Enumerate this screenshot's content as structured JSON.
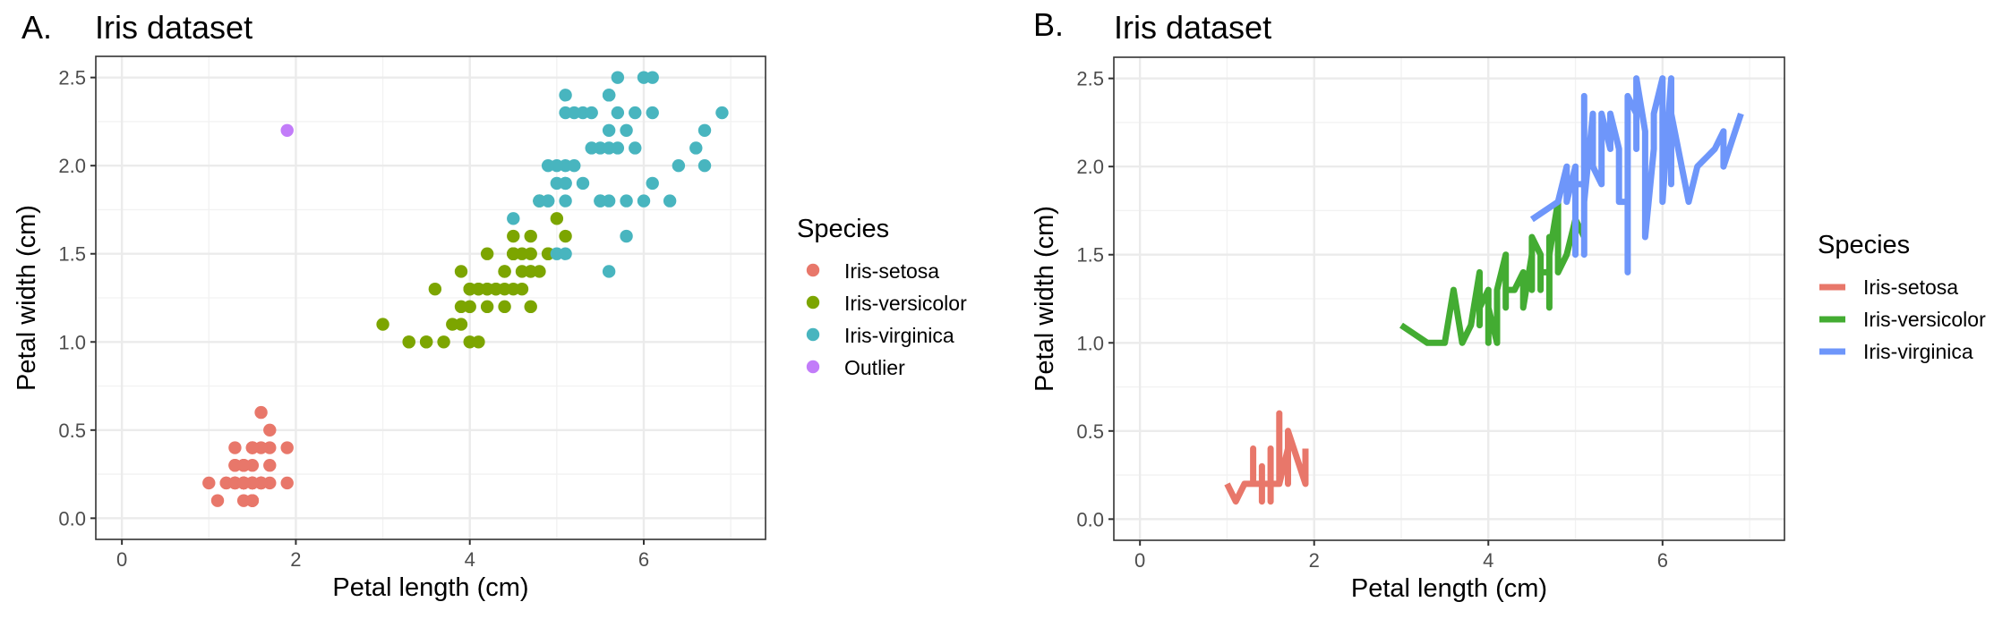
{
  "chart_data": [
    {
      "panel": "A.",
      "type": "scatter",
      "title": "Iris dataset",
      "xlabel": "Petal length (cm)",
      "ylabel": "Petal width (cm)",
      "xlim": [
        -0.3,
        7.4
      ],
      "ylim": [
        -0.12,
        2.62
      ],
      "xticks": [
        0,
        2,
        4,
        6
      ],
      "xtick_labels": [
        "0",
        "2",
        "4",
        "6"
      ],
      "yticks": [
        0.0,
        0.5,
        1.0,
        1.5,
        2.0,
        2.5
      ],
      "ytick_labels": [
        "0.0",
        "0.5",
        "1.0",
        "1.5",
        "2.0",
        "2.5"
      ],
      "grid": true,
      "legend": {
        "title": "Species",
        "placement": "right"
      },
      "series": [
        {
          "name": "Iris-setosa",
          "color": "#E8776A",
          "x": [
            1.4,
            1.4,
            1.3,
            1.5,
            1.4,
            1.7,
            1.4,
            1.5,
            1.4,
            1.5,
            1.5,
            1.6,
            1.4,
            1.1,
            1.2,
            1.5,
            1.3,
            1.4,
            1.7,
            1.5,
            1.7,
            1.5,
            1.0,
            1.7,
            1.9,
            1.6,
            1.6,
            1.5,
            1.4,
            1.6,
            1.6,
            1.5,
            1.5,
            1.4,
            1.5,
            1.2,
            1.3,
            1.5,
            1.3,
            1.5,
            1.3,
            1.3,
            1.3,
            1.6,
            1.9,
            1.4,
            1.6,
            1.4,
            1.5,
            1.4
          ],
          "y": [
            0.2,
            0.2,
            0.2,
            0.2,
            0.2,
            0.4,
            0.3,
            0.2,
            0.2,
            0.1,
            0.2,
            0.2,
            0.1,
            0.1,
            0.2,
            0.4,
            0.4,
            0.3,
            0.3,
            0.3,
            0.2,
            0.4,
            0.2,
            0.5,
            0.2,
            0.2,
            0.4,
            0.2,
            0.2,
            0.2,
            0.2,
            0.4,
            0.1,
            0.2,
            0.1,
            0.2,
            0.2,
            0.1,
            0.2,
            0.2,
            0.3,
            0.3,
            0.2,
            0.6,
            0.4,
            0.3,
            0.2,
            0.2,
            0.2,
            0.2
          ]
        },
        {
          "name": "Iris-versicolor",
          "color": "#7CA500",
          "x": [
            4.7,
            4.5,
            4.9,
            4.0,
            4.6,
            4.5,
            4.7,
            3.3,
            4.6,
            3.9,
            3.5,
            4.2,
            4.0,
            4.7,
            3.6,
            4.4,
            4.5,
            4.1,
            4.5,
            3.9,
            4.8,
            4.0,
            4.9,
            4.7,
            4.3,
            4.4,
            4.8,
            5.0,
            4.5,
            3.5,
            3.8,
            3.7,
            3.9,
            5.1,
            4.5,
            4.5,
            4.7,
            4.4,
            4.1,
            4.0,
            4.4,
            4.6,
            4.0,
            3.3,
            4.2,
            4.2,
            4.2,
            4.3,
            3.0,
            4.1
          ],
          "y": [
            1.4,
            1.5,
            1.5,
            1.3,
            1.5,
            1.3,
            1.6,
            1.0,
            1.3,
            1.4,
            1.0,
            1.5,
            1.0,
            1.4,
            1.3,
            1.4,
            1.5,
            1.0,
            1.5,
            1.1,
            1.8,
            1.3,
            1.5,
            1.2,
            1.3,
            1.4,
            1.4,
            1.7,
            1.5,
            1.0,
            1.1,
            1.0,
            1.2,
            1.6,
            1.5,
            1.6,
            1.5,
            1.3,
            1.3,
            1.3,
            1.2,
            1.4,
            1.2,
            1.0,
            1.3,
            1.2,
            1.3,
            1.3,
            1.1,
            1.3
          ]
        },
        {
          "name": "Iris-virginica",
          "color": "#48B5BF",
          "x": [
            6.0,
            5.1,
            5.9,
            5.6,
            5.8,
            6.6,
            4.5,
            6.3,
            5.8,
            6.1,
            5.1,
            5.3,
            5.5,
            5.0,
            5.1,
            5.3,
            5.5,
            6.7,
            6.9,
            5.0,
            5.7,
            4.9,
            6.7,
            4.9,
            5.7,
            6.0,
            4.8,
            4.9,
            5.6,
            5.8,
            6.1,
            6.4,
            5.6,
            5.1,
            5.6,
            6.1,
            5.6,
            5.5,
            4.8,
            5.4,
            5.6,
            5.1,
            5.1,
            5.9,
            5.7,
            5.2,
            5.0,
            5.2,
            5.4,
            5.1
          ],
          "y": [
            2.5,
            1.9,
            2.1,
            1.8,
            2.2,
            2.1,
            1.7,
            1.8,
            1.8,
            2.5,
            2.0,
            1.9,
            2.1,
            2.0,
            2.4,
            2.3,
            1.8,
            2.2,
            2.3,
            1.5,
            2.3,
            2.0,
            2.0,
            1.8,
            2.1,
            1.8,
            1.8,
            1.8,
            2.1,
            1.6,
            1.9,
            2.0,
            2.2,
            1.5,
            1.4,
            2.3,
            2.4,
            1.8,
            1.8,
            2.1,
            2.4,
            2.3,
            1.9,
            2.3,
            2.5,
            2.3,
            1.9,
            2.0,
            2.3,
            1.8
          ]
        },
        {
          "name": "Outlier",
          "color": "#C27CF9",
          "x": [
            1.9
          ],
          "y": [
            2.2
          ]
        }
      ]
    },
    {
      "panel": "B.",
      "type": "line",
      "title": "Iris dataset",
      "xlabel": "Petal length (cm)",
      "ylabel": "Petal width (cm)",
      "xlim": [
        -0.3,
        7.4
      ],
      "ylim": [
        -0.12,
        2.62
      ],
      "xticks": [
        0,
        2,
        4,
        6
      ],
      "xtick_labels": [
        "0",
        "2",
        "4",
        "6"
      ],
      "yticks": [
        0.0,
        0.5,
        1.0,
        1.5,
        2.0,
        2.5
      ],
      "ytick_labels": [
        "0.0",
        "0.5",
        "1.0",
        "1.5",
        "2.0",
        "2.5"
      ],
      "grid": true,
      "legend": {
        "title": "Species",
        "placement": "right"
      },
      "series": [
        {
          "name": "Iris-setosa",
          "color": "#E8776A",
          "source_series": 0
        },
        {
          "name": "Iris-versicolor",
          "color": "#43AC32",
          "source_series": 1
        },
        {
          "name": "Iris-virginica",
          "color": "#6E96FA",
          "source_series": 2
        }
      ]
    }
  ]
}
